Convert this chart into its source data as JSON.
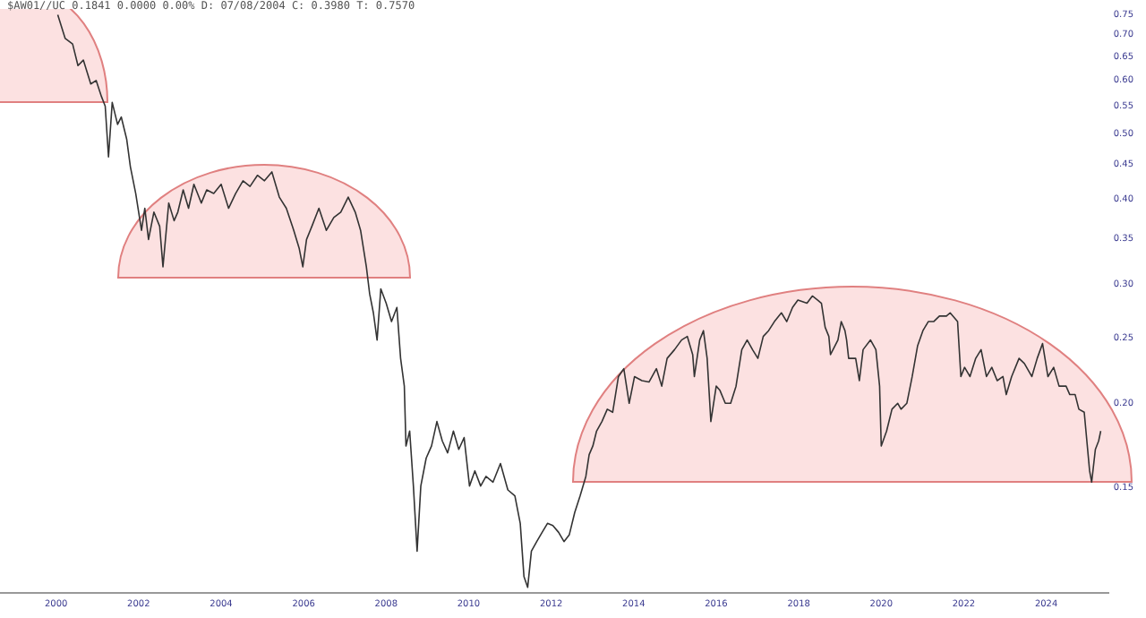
{
  "chart_data": {
    "type": "line",
    "title": "$AW01//UC 0.1841 0.0000 0.00% D: 07/08/2004 C: 0.3980 T: 0.7570",
    "series": [
      {
        "color": "#333333",
        "x": [
          2000.04,
          2000.22,
          2000.4,
          2000.53,
          2000.66,
          2000.84,
          2000.97,
          2001.1,
          2001.19,
          2001.27,
          2001.36,
          2001.49,
          2001.58,
          2001.71,
          2001.8,
          2001.93,
          2002.07,
          2002.15,
          2002.24,
          2002.37,
          2002.51,
          2002.59,
          2002.73,
          2002.86,
          2002.95,
          2003.08,
          2003.21,
          2003.34,
          2003.52,
          2003.65,
          2003.82,
          2004.0,
          2004.18,
          2004.35,
          2004.53,
          2004.7,
          2004.88,
          2005.05,
          2005.23,
          2005.41,
          2005.58,
          2005.76,
          2005.89,
          2005.98,
          2006.07,
          2006.2,
          2006.37,
          2006.55,
          2006.73,
          2006.9,
          2007.08,
          2007.25,
          2007.38,
          2007.52,
          2007.6,
          2007.69,
          2007.78,
          2007.87,
          2008.0,
          2008.13,
          2008.26,
          2008.35,
          2008.44,
          2008.48,
          2008.57,
          2008.66,
          2008.75,
          2008.84,
          2008.97,
          2009.1,
          2009.23,
          2009.36,
          2009.49,
          2009.63,
          2009.76,
          2009.89,
          2010.02,
          2010.15,
          2010.29,
          2010.42,
          2010.59,
          2010.77,
          2010.95,
          2011.12,
          2011.25,
          2011.34,
          2011.43,
          2011.52,
          2011.65,
          2011.78,
          2011.91,
          2012.04,
          2012.18,
          2012.31,
          2012.44,
          2012.57,
          2012.7,
          2012.84,
          2012.92,
          2013.01,
          2013.1,
          2013.23,
          2013.36,
          2013.49,
          2013.63,
          2013.76,
          2013.89,
          2014.02,
          2014.2,
          2014.37,
          2014.55,
          2014.68,
          2014.81,
          2014.99,
          2015.16,
          2015.3,
          2015.43,
          2015.47,
          2015.6,
          2015.69,
          2015.78,
          2015.87,
          2016.0,
          2016.09,
          2016.22,
          2016.35,
          2016.48,
          2016.62,
          2016.75,
          2016.88,
          2017.01,
          2017.14,
          2017.27,
          2017.41,
          2017.58,
          2017.71,
          2017.85,
          2017.98,
          2018.2,
          2018.33,
          2018.46,
          2018.55,
          2018.64,
          2018.73,
          2018.77,
          2018.95,
          2019.03,
          2019.12,
          2019.16,
          2019.21,
          2019.38,
          2019.47,
          2019.56,
          2019.74,
          2019.87,
          2019.96,
          2020.0,
          2020.13,
          2020.26,
          2020.4,
          2020.48,
          2020.62,
          2020.75,
          2020.88,
          2021.01,
          2021.14,
          2021.27,
          2021.41,
          2021.58,
          2021.67,
          2021.85,
          2021.93,
          2022.02,
          2022.15,
          2022.29,
          2022.42,
          2022.55,
          2022.68,
          2022.81,
          2022.95,
          2023.03,
          2023.16,
          2023.34,
          2023.47,
          2023.65,
          2023.78,
          2023.91,
          2024.04,
          2024.18,
          2024.31,
          2024.48,
          2024.57,
          2024.7,
          2024.79,
          2024.92,
          2025.05,
          2025.1,
          2025.19,
          2025.27,
          2025.32
        ],
        "values": [
          0.749,
          0.691,
          0.678,
          0.63,
          0.642,
          0.592,
          0.599,
          0.567,
          0.549,
          0.462,
          0.556,
          0.516,
          0.529,
          0.491,
          0.447,
          0.408,
          0.36,
          0.388,
          0.349,
          0.383,
          0.365,
          0.318,
          0.395,
          0.372,
          0.383,
          0.413,
          0.388,
          0.421,
          0.395,
          0.413,
          0.408,
          0.421,
          0.388,
          0.408,
          0.426,
          0.418,
          0.434,
          0.426,
          0.439,
          0.403,
          0.388,
          0.36,
          0.339,
          0.318,
          0.349,
          0.365,
          0.388,
          0.36,
          0.376,
          0.383,
          0.403,
          0.383,
          0.36,
          0.318,
          0.29,
          0.272,
          0.248,
          0.295,
          0.281,
          0.264,
          0.277,
          0.233,
          0.212,
          0.173,
          0.182,
          0.151,
          0.121,
          0.151,
          0.166,
          0.173,
          0.188,
          0.176,
          0.169,
          0.182,
          0.171,
          0.178,
          0.151,
          0.159,
          0.151,
          0.156,
          0.153,
          0.163,
          0.149,
          0.146,
          0.133,
          0.111,
          0.107,
          0.121,
          0.125,
          0.129,
          0.133,
          0.132,
          0.129,
          0.125,
          0.128,
          0.138,
          0.146,
          0.156,
          0.168,
          0.173,
          0.182,
          0.188,
          0.196,
          0.194,
          0.219,
          0.225,
          0.2,
          0.219,
          0.216,
          0.215,
          0.225,
          0.212,
          0.233,
          0.24,
          0.248,
          0.251,
          0.236,
          0.219,
          0.248,
          0.256,
          0.233,
          0.188,
          0.212,
          0.209,
          0.2,
          0.2,
          0.212,
          0.24,
          0.248,
          0.24,
          0.233,
          0.251,
          0.256,
          0.264,
          0.272,
          0.264,
          0.277,
          0.284,
          0.281,
          0.288,
          0.284,
          0.281,
          0.259,
          0.251,
          0.236,
          0.248,
          0.264,
          0.256,
          0.248,
          0.233,
          0.233,
          0.216,
          0.24,
          0.248,
          0.24,
          0.212,
          0.173,
          0.182,
          0.196,
          0.2,
          0.196,
          0.2,
          0.219,
          0.243,
          0.256,
          0.264,
          0.264,
          0.269,
          0.269,
          0.272,
          0.264,
          0.219,
          0.226,
          0.219,
          0.233,
          0.24,
          0.219,
          0.226,
          0.216,
          0.219,
          0.206,
          0.219,
          0.233,
          0.229,
          0.219,
          0.233,
          0.245,
          0.219,
          0.226,
          0.212,
          0.212,
          0.206,
          0.206,
          0.196,
          0.194,
          0.159,
          0.153,
          0.171,
          0.176,
          0.182
        ]
      }
    ],
    "xlim": [
      1998.64,
      2025.5
    ],
    "xticks": [
      2000,
      2002,
      2004,
      2006,
      2008,
      2010,
      2012,
      2014,
      2016,
      2018,
      2020,
      2022,
      2024
    ],
    "ylim": [
      0.105,
      0.75
    ],
    "yticks": [
      {
        "value": 0.15,
        "label": "0.15"
      },
      {
        "value": 0.2,
        "label": "0.20"
      },
      0.25,
      {
        "value": 0.3,
        "label": "0.30"
      },
      0.35,
      {
        "value": 0.4,
        "label": "0.40"
      },
      0.45,
      {
        "value": 0.5,
        "label": "0.50"
      },
      0.55,
      {
        "value": 0.6,
        "label": "0.60"
      },
      0.65,
      {
        "value": 0.7,
        "label": "0.70"
      },
      0.75
    ],
    "log": "y",
    "grid": false,
    "legend": false,
    "marker": "none",
    "line_style": "solid"
  }
}
